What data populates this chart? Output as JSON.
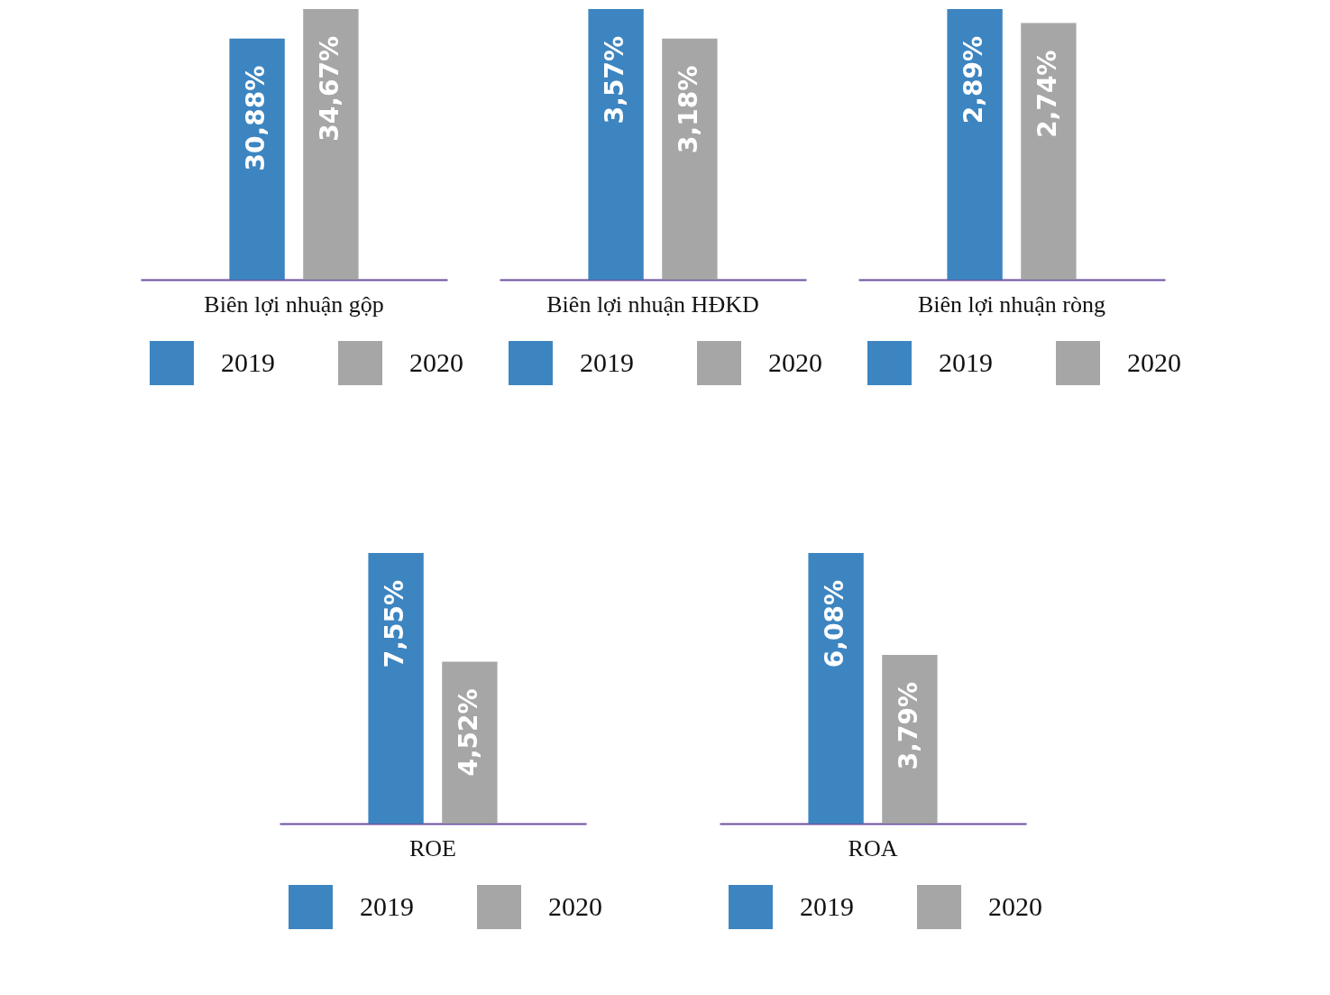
{
  "chart_data": [
    {
      "type": "bar",
      "categories": [
        "Biên lợi nhuận gộp"
      ],
      "legend": "bottom",
      "series": [
        {
          "name": "2019",
          "color": "#3d85c0",
          "values": [
            30.88
          ],
          "value_labels": [
            "30,88%"
          ]
        },
        {
          "name": "2020",
          "color": "#a6a6a6",
          "values": [
            34.67
          ],
          "value_labels": [
            "34,67%"
          ]
        }
      ]
    },
    {
      "type": "bar",
      "categories": [
        "Biên lợi nhuận HĐKD"
      ],
      "legend": "bottom",
      "series": [
        {
          "name": "2019",
          "color": "#3d85c0",
          "values": [
            3.57
          ],
          "value_labels": [
            "3,57%"
          ]
        },
        {
          "name": "2020",
          "color": "#a6a6a6",
          "values": [
            3.18
          ],
          "value_labels": [
            "3,18%"
          ]
        }
      ]
    },
    {
      "type": "bar",
      "categories": [
        "Biên lợi nhuận ròng"
      ],
      "legend": "bottom",
      "series": [
        {
          "name": "2019",
          "color": "#3d85c0",
          "values": [
            2.89
          ],
          "value_labels": [
            "2,89%"
          ]
        },
        {
          "name": "2020",
          "color": "#a6a6a6",
          "values": [
            2.74
          ],
          "value_labels": [
            "2,74%"
          ]
        }
      ]
    },
    {
      "type": "bar",
      "categories": [
        "ROE"
      ],
      "legend": "bottom",
      "series": [
        {
          "name": "2019",
          "color": "#3d85c0",
          "values": [
            7.55
          ],
          "value_labels": [
            "7,55%"
          ]
        },
        {
          "name": "2020",
          "color": "#a6a6a6",
          "values": [
            4.52
          ],
          "value_labels": [
            "4,52%"
          ]
        }
      ]
    },
    {
      "type": "bar",
      "categories": [
        "ROA"
      ],
      "legend": "bottom",
      "series": [
        {
          "name": "2019",
          "color": "#3d85c0",
          "values": [
            6.08
          ],
          "value_labels": [
            "6,08%"
          ]
        },
        {
          "name": "2020",
          "color": "#a6a6a6",
          "values": [
            3.79
          ],
          "value_labels": [
            "3,79%"
          ]
        }
      ]
    }
  ]
}
